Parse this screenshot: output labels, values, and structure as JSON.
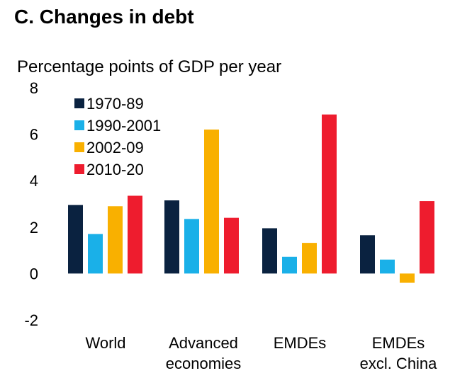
{
  "chart_data": {
    "type": "bar",
    "title": "C. Changes in debt",
    "ylabel": "Percentage points of GDP per year",
    "xlabel": "",
    "ylim": [
      -2,
      8
    ],
    "yticks": [
      -2,
      0,
      2,
      4,
      6,
      8
    ],
    "tick_labels": [
      "-2",
      "0",
      "2",
      "4",
      "6",
      "8"
    ],
    "grid": false,
    "legend_position": "top-left",
    "categories": [
      [
        "World"
      ],
      [
        "Advanced",
        "economies"
      ],
      [
        "EMDEs"
      ],
      [
        "EMDEs",
        "excl. China"
      ]
    ],
    "series": [
      {
        "name": "1970-89",
        "color": "#0a2240",
        "values": [
          2.95,
          3.15,
          1.95,
          1.65
        ]
      },
      {
        "name": "1990-2001",
        "color": "#1ab0e8",
        "values": [
          1.7,
          2.35,
          0.72,
          0.6
        ]
      },
      {
        "name": "2002-09",
        "color": "#f9b000",
        "values": [
          2.9,
          6.2,
          1.32,
          -0.4
        ]
      },
      {
        "name": "2010-20",
        "color": "#ee1c2e",
        "values": [
          3.35,
          2.4,
          6.85,
          3.12
        ]
      }
    ]
  }
}
